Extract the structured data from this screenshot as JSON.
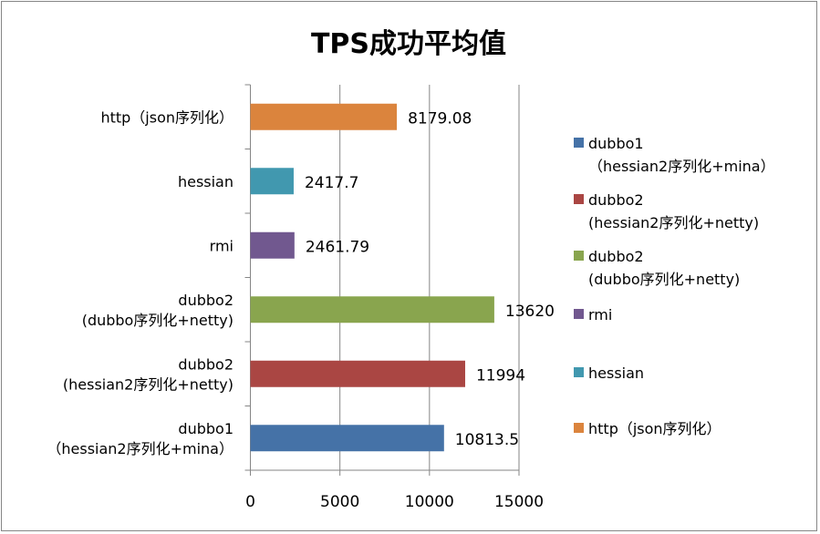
{
  "chart_data": {
    "type": "bar",
    "orientation": "horizontal",
    "title": "TPS成功平均值",
    "categories": [
      [
        "dubbo1",
        "（hessian2序列化+mina）"
      ],
      [
        "dubbo2",
        "(hessian2序列化+netty)"
      ],
      [
        "dubbo2",
        "(dubbo序列化+netty)"
      ],
      [
        "rmi"
      ],
      [
        "hessian"
      ],
      [
        "http（json序列化）"
      ]
    ],
    "series": [
      {
        "name": "dubbo1（hessian2序列化+mina）",
        "legend": [
          "dubbo1",
          "（hessian2序列化+mina）"
        ],
        "color": "#4572A7",
        "category_index": 0,
        "value": 10813.5,
        "label": "10813.5"
      },
      {
        "name": "dubbo2 (hessian2序列化+netty)",
        "legend": [
          "dubbo2",
          "(hessian2序列化+netty)"
        ],
        "color": "#AA4643",
        "category_index": 1,
        "value": 11994,
        "label": "11994"
      },
      {
        "name": "dubbo2 (dubbo序列化+netty)",
        "legend": [
          "dubbo2",
          "(dubbo序列化+netty)"
        ],
        "color": "#89A54E",
        "category_index": 2,
        "value": 13620,
        "label": "13620"
      },
      {
        "name": "rmi",
        "legend": [
          "rmi"
        ],
        "color": "#71588F",
        "category_index": 3,
        "value": 2461.79,
        "label": "2461.79"
      },
      {
        "name": "hessian",
        "legend": [
          "hessian"
        ],
        "color": "#4198AF",
        "category_index": 4,
        "value": 2417.7,
        "label": "2417.7"
      },
      {
        "name": "http（json序列化）",
        "legend": [
          "http（json序列化）"
        ],
        "color": "#DB843D",
        "category_index": 5,
        "value": 8179.08,
        "label": "8179.08"
      }
    ],
    "xlim": [
      0,
      15000
    ],
    "xticks": [
      "0",
      "5000",
      "10000",
      "15000"
    ],
    "xlabel": "",
    "ylabel": "",
    "grid": "vertical major",
    "legend_position": "right"
  }
}
